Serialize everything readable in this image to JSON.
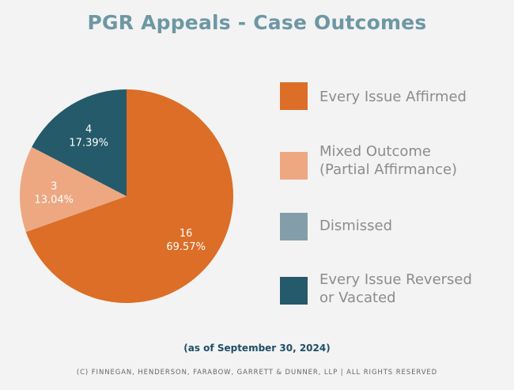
{
  "chart_data": {
    "type": "pie",
    "title": "PGR Appeals - Case Outcomes",
    "subtitle": "(as of September 30, 2024)",
    "legend_position": "right",
    "slices": [
      {
        "name": "Every Issue Affirmed",
        "legend_lines": [
          "Every Issue Affirmed"
        ],
        "value": 16,
        "percent": "69.57%",
        "color": "#dc6e27"
      },
      {
        "name": "Mixed Outcome (Partial Affirmance)",
        "legend_lines": [
          "Mixed Outcome",
          "(Partial Affirmance)"
        ],
        "value": 3,
        "percent": "13.04%",
        "color": "#eda882"
      },
      {
        "name": "Dismissed",
        "legend_lines": [
          "Dismissed"
        ],
        "value": 0,
        "percent": "0%",
        "color": "#839ea9"
      },
      {
        "name": "Every Issue Reversed or Vacated",
        "legend_lines": [
          "Every Issue Reversed",
          "or Vacated"
        ],
        "value": 4,
        "percent": "17.39%",
        "color": "#245a6a"
      }
    ]
  },
  "footer": {
    "copyright": "(C) FINNEGAN, HENDERSON, FARABOW, GARRETT & DUNNER, LLP | ALL RIGHTS RESERVED"
  }
}
